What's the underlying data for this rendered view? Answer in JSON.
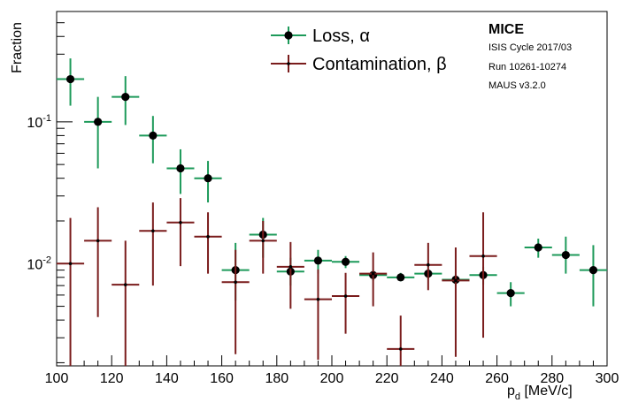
{
  "chart_data": {
    "type": "scatter",
    "xlabel_main": "p",
    "xlabel_sub": "d",
    "xlabel_unit": " [MeV/c]",
    "ylabel": "Fraction",
    "xlim": [
      100,
      300
    ],
    "ylim": [
      0.0019,
      0.6
    ],
    "yscale": "log",
    "x_ticks": [
      100,
      120,
      140,
      160,
      180,
      200,
      220,
      240,
      260,
      280,
      300
    ],
    "x_tick_labels": [
      "100",
      "120",
      "140",
      "160",
      "180",
      "200",
      "220",
      "240",
      "260",
      "280",
      "300"
    ],
    "y_major_ticks": [
      0.01,
      0.1
    ],
    "y_tick_base": "10",
    "y_tick_exponents": [
      "-2",
      "-1"
    ],
    "legend_position": "top-center",
    "grid": false,
    "annotation": {
      "title": "MICE",
      "lines": [
        "ISIS Cycle 2017/03",
        "Run 10261-10274",
        "MAUS v3.2.0"
      ]
    },
    "series": [
      {
        "name": "Loss, α",
        "color": "#1d9a5a",
        "marker": "circle",
        "marker_color": "#000000",
        "points": [
          {
            "x": 105,
            "y": 0.2,
            "y_lo": 0.13,
            "y_hi": 0.28
          },
          {
            "x": 115,
            "y": 0.1,
            "y_lo": 0.047,
            "y_hi": 0.15
          },
          {
            "x": 125,
            "y": 0.15,
            "y_lo": 0.095,
            "y_hi": 0.21
          },
          {
            "x": 135,
            "y": 0.08,
            "y_lo": 0.051,
            "y_hi": 0.11
          },
          {
            "x": 145,
            "y": 0.047,
            "y_lo": 0.031,
            "y_hi": 0.064
          },
          {
            "x": 155,
            "y": 0.04,
            "y_lo": 0.027,
            "y_hi": 0.053
          },
          {
            "x": 165,
            "y": 0.009,
            "y_lo": 0.0055,
            "y_hi": 0.014
          },
          {
            "x": 175,
            "y": 0.016,
            "y_lo": 0.011,
            "y_hi": 0.021
          },
          {
            "x": 185,
            "y": 0.0088,
            "y_lo": 0.007,
            "y_hi": 0.011
          },
          {
            "x": 195,
            "y": 0.0105,
            "y_lo": 0.0085,
            "y_hi": 0.0125
          },
          {
            "x": 205,
            "y": 0.0103,
            "y_lo": 0.0093,
            "y_hi": 0.0113
          },
          {
            "x": 215,
            "y": 0.0083,
            "y_lo": 0.0076,
            "y_hi": 0.009
          },
          {
            "x": 225,
            "y": 0.008,
            "y_lo": 0.0075,
            "y_hi": 0.0086
          },
          {
            "x": 235,
            "y": 0.0085,
            "y_lo": 0.0078,
            "y_hi": 0.0092
          },
          {
            "x": 245,
            "y": 0.0077,
            "y_lo": 0.007,
            "y_hi": 0.0084
          },
          {
            "x": 255,
            "y": 0.0083,
            "y_lo": 0.0071,
            "y_hi": 0.0095
          },
          {
            "x": 265,
            "y": 0.0062,
            "y_lo": 0.005,
            "y_hi": 0.0074
          },
          {
            "x": 275,
            "y": 0.013,
            "y_lo": 0.011,
            "y_hi": 0.015
          },
          {
            "x": 285,
            "y": 0.0115,
            "y_lo": 0.0085,
            "y_hi": 0.0155
          },
          {
            "x": 295,
            "y": 0.009,
            "y_lo": 0.005,
            "y_hi": 0.0135
          }
        ]
      },
      {
        "name": "Contamination, β",
        "color": "#7a1c1c",
        "marker": "small-point",
        "marker_color": "#000000",
        "points": [
          {
            "x": 105,
            "y": 0.01,
            "y_lo": 0.0019,
            "y_hi": 0.021
          },
          {
            "x": 115,
            "y": 0.0145,
            "y_lo": 0.0042,
            "y_hi": 0.025
          },
          {
            "x": 125,
            "y": 0.0071,
            "y_lo": 0.0019,
            "y_hi": 0.0145
          },
          {
            "x": 135,
            "y": 0.017,
            "y_lo": 0.007,
            "y_hi": 0.027
          },
          {
            "x": 145,
            "y": 0.0195,
            "y_lo": 0.0096,
            "y_hi": 0.029
          },
          {
            "x": 155,
            "y": 0.0155,
            "y_lo": 0.0085,
            "y_hi": 0.023
          },
          {
            "x": 165,
            "y": 0.0074,
            "y_lo": 0.0023,
            "y_hi": 0.0125
          },
          {
            "x": 175,
            "y": 0.0145,
            "y_lo": 0.0085,
            "y_hi": 0.02
          },
          {
            "x": 185,
            "y": 0.0095,
            "y_lo": 0.0048,
            "y_hi": 0.0142
          },
          {
            "x": 195,
            "y": 0.0056,
            "y_lo": 0.0021,
            "y_hi": 0.0091
          },
          {
            "x": 205,
            "y": 0.0059,
            "y_lo": 0.0032,
            "y_hi": 0.0086
          },
          {
            "x": 215,
            "y": 0.0085,
            "y_lo": 0.005,
            "y_hi": 0.012
          },
          {
            "x": 225,
            "y": 0.0025,
            "y_lo": 0.0019,
            "y_hi": 0.0043
          },
          {
            "x": 235,
            "y": 0.0098,
            "y_lo": 0.0065,
            "y_hi": 0.014
          },
          {
            "x": 245,
            "y": 0.0076,
            "y_lo": 0.0022,
            "y_hi": 0.013
          },
          {
            "x": 255,
            "y": 0.0113,
            "y_lo": 0.003,
            "y_hi": 0.023
          }
        ]
      }
    ]
  }
}
